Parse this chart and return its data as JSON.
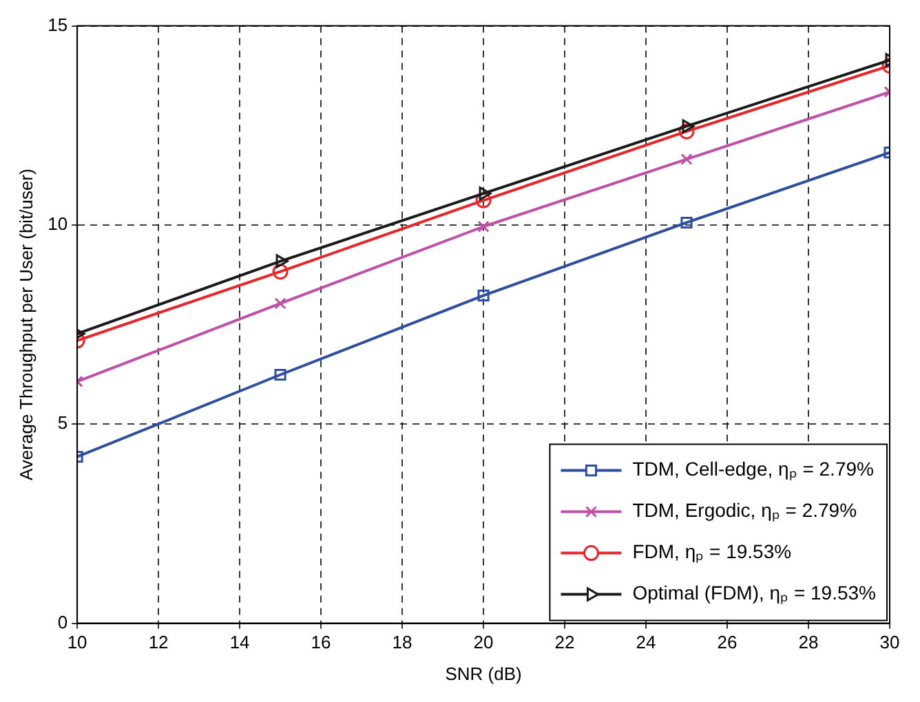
{
  "chart_data": {
    "type": "line",
    "xlabel": "SNR (dB)",
    "ylabel": "Average Throughput per User (bit/user)",
    "xlim": [
      10,
      30
    ],
    "xticks": [
      10,
      12,
      14,
      16,
      18,
      20,
      22,
      24,
      26,
      28,
      30
    ],
    "ylim": [
      0,
      15
    ],
    "yticks": [
      0,
      5,
      10,
      15
    ],
    "grid": true,
    "legend": "bottom right",
    "line_style": "solid",
    "x": [
      10,
      15,
      20,
      25,
      30
    ],
    "series": [
      {
        "name": "TDM, Cell-edge, ηₚ = 2.79%",
        "color": "#2e4fa0",
        "marker": "square",
        "values": [
          4.18,
          6.24,
          8.23,
          10.06,
          11.82
        ]
      },
      {
        "name": "TDM, Ergodic, ηₚ = 2.79%",
        "color": "#c04fa8",
        "marker": "cross",
        "values": [
          6.07,
          8.03,
          9.96,
          11.65,
          13.34
        ]
      },
      {
        "name": "FDM, ηₚ = 19.53%",
        "color": "#e8262a",
        "marker": "circle",
        "values": [
          7.1,
          8.83,
          10.62,
          12.35,
          14.0
        ]
      },
      {
        "name": "Optimal (FDM), ηₚ = 19.53%",
        "color": "#1a1a1a",
        "marker": "triangle",
        "values": [
          7.27,
          9.09,
          10.79,
          12.48,
          14.14
        ]
      }
    ]
  }
}
